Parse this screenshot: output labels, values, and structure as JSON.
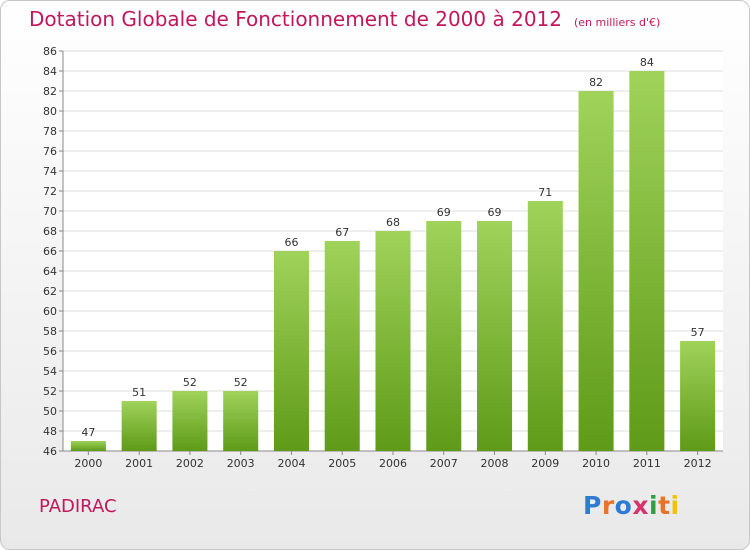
{
  "header": {
    "title": "Dotation Globale de Fonctionnement de 2000 à 2012",
    "unit": "(en milliers d'€)"
  },
  "footer": {
    "commune": "PADIRAC",
    "logo_text": "Proxiti"
  },
  "colors": {
    "title": "#c2185b",
    "bar_top": "#9fd35a",
    "bar_bottom": "#5f9a18",
    "logo": [
      "#2e7bd6",
      "#e8742a",
      "#2e7bd6",
      "#d6336c",
      "#2ea043",
      "#e8742a",
      "#f2c100"
    ]
  },
  "chart_data": {
    "type": "bar",
    "categories": [
      "2000",
      "2001",
      "2002",
      "2003",
      "2004",
      "2005",
      "2006",
      "2007",
      "2008",
      "2009",
      "2010",
      "2011",
      "2012"
    ],
    "values": [
      47,
      51,
      52,
      52,
      66,
      67,
      68,
      69,
      69,
      71,
      82,
      84,
      57
    ],
    "title": "Dotation Globale de Fonctionnement de 2000 à 2012",
    "subtitle": "(en milliers d'€)",
    "xlabel": "",
    "ylabel": "",
    "ylim": [
      46,
      86
    ],
    "ytick_step": 2,
    "grid": true
  }
}
